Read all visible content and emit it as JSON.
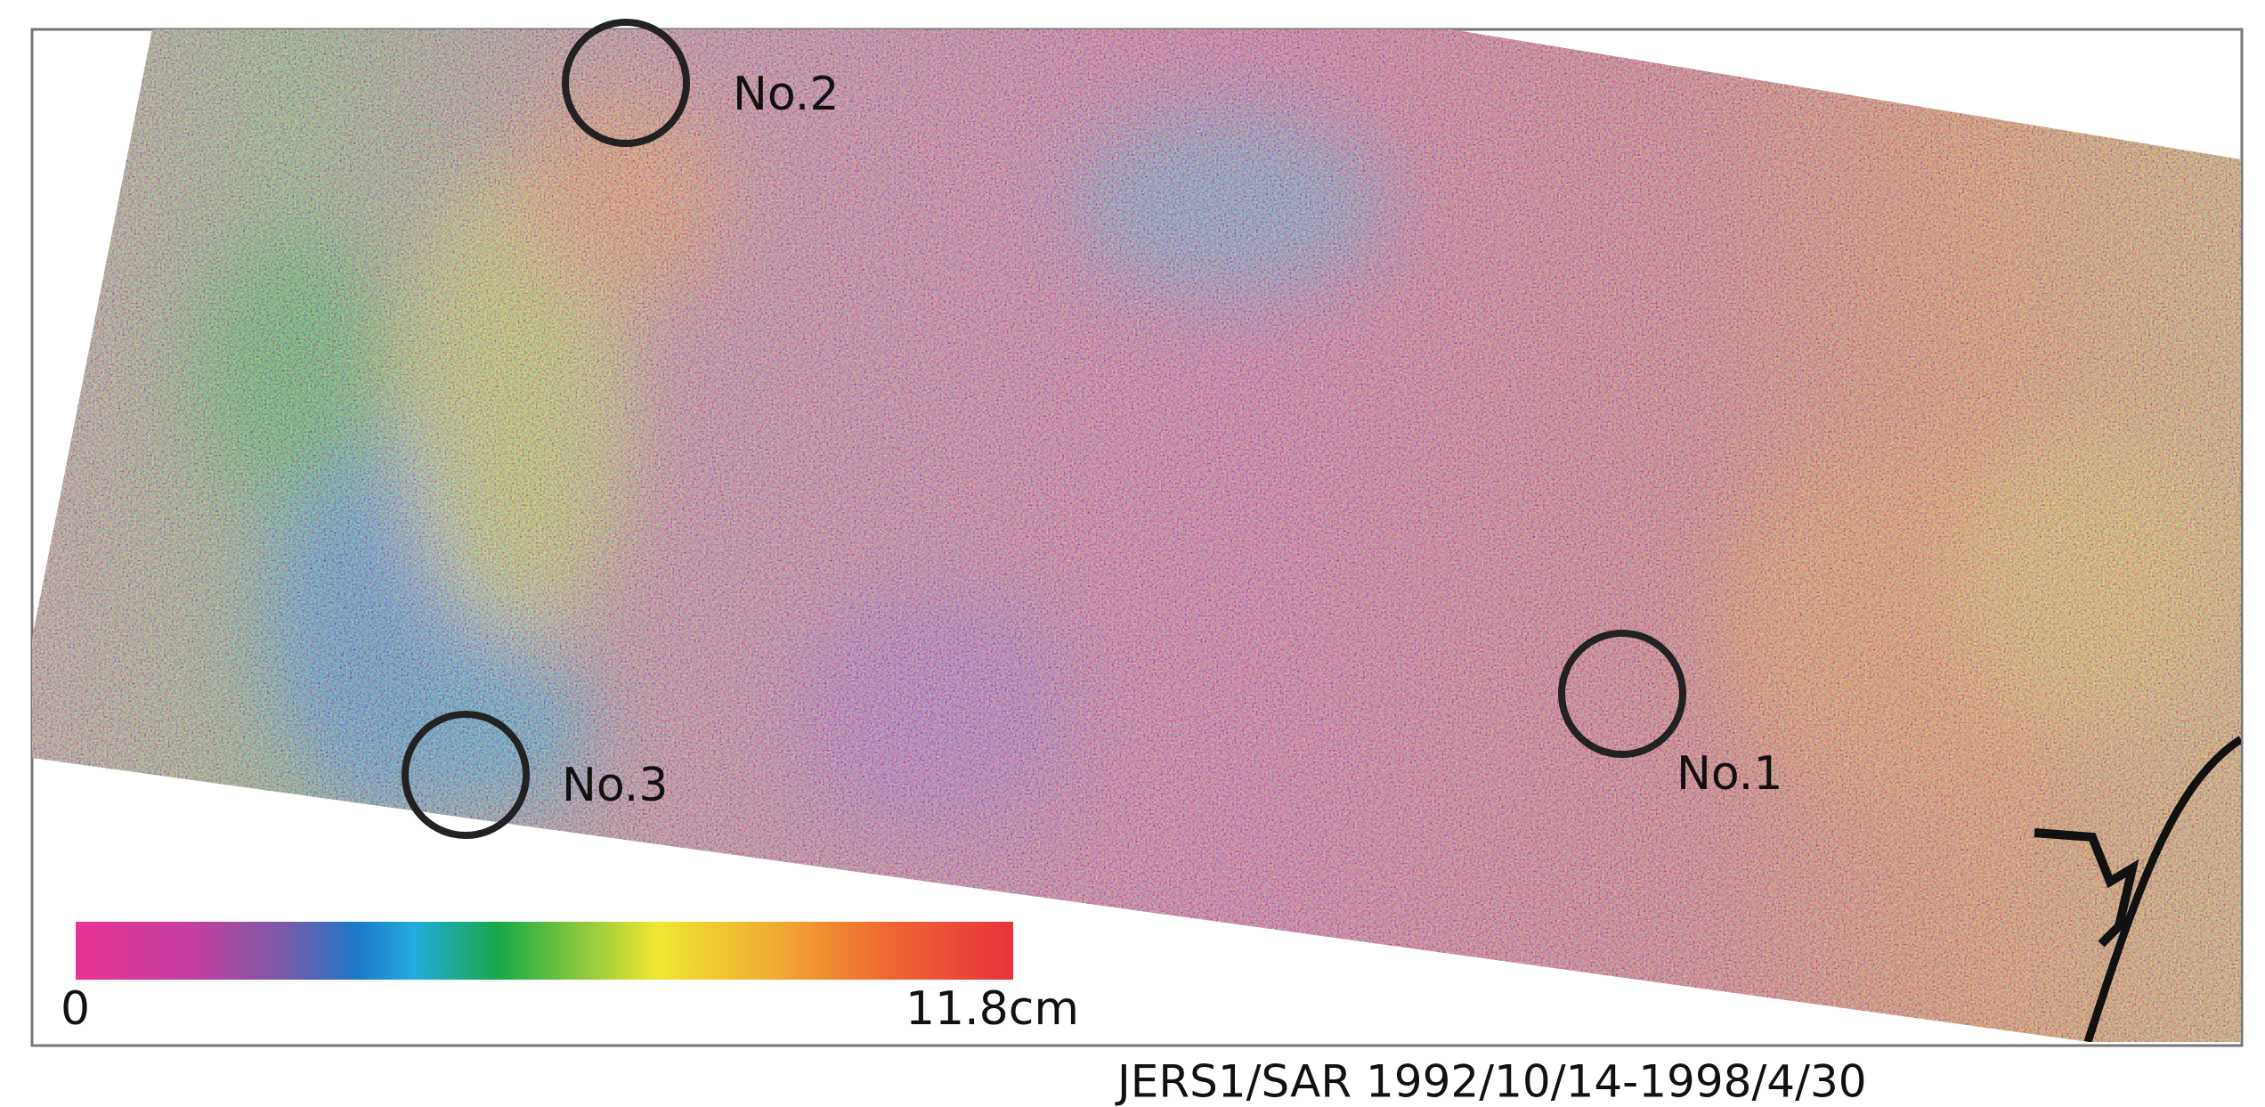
{
  "markers": [
    "No.1",
    "No.2",
    "No.3"
  ],
  "colorbar": {
    "min_label": "0",
    "max_label": "11.8cm"
  },
  "caption": "JERS1/SAR 1992/10/14-1998/4/30"
}
